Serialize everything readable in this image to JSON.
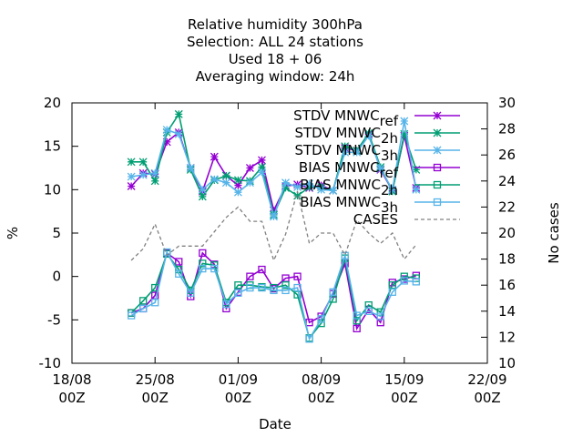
{
  "chart_data": {
    "type": "line",
    "title_lines": [
      "Relative humidity 300hPa",
      "Selection: ALL      24 stations",
      "Used  18 + 06",
      "Averaging window: 24h"
    ],
    "xlabel": "Date",
    "ylabel": "%",
    "y2label": "No cases",
    "x_ticks": [
      {
        "x": "2025-08-18",
        "line1": "18/08",
        "line2": "00Z"
      },
      {
        "x": "2025-08-25",
        "line1": "25/08",
        "line2": "00Z"
      },
      {
        "x": "2025-09-01",
        "line1": "01/09",
        "line2": "00Z"
      },
      {
        "x": "2025-09-08",
        "line1": "08/09",
        "line2": "00Z"
      },
      {
        "x": "2025-09-15",
        "line1": "15/09",
        "line2": "00Z"
      },
      {
        "x": "2025-09-22",
        "line1": "22/09",
        "line2": "00Z"
      }
    ],
    "xlim": [
      "2025-08-18",
      "2025-09-22"
    ],
    "ylim": [
      -10,
      20
    ],
    "y_ticks": [
      -10,
      -5,
      0,
      5,
      10,
      15,
      20
    ],
    "y2lim": [
      10,
      30
    ],
    "y2_ticks": [
      10,
      12,
      14,
      16,
      18,
      20,
      22,
      24,
      26,
      28,
      30
    ],
    "x": [
      "2025-08-23 00:00",
      "2025-08-24 00:00",
      "2025-08-25 00:00",
      "2025-08-26 00:00",
      "2025-08-27 00:00",
      "2025-08-28 00:00",
      "2025-08-29 00:00",
      "2025-08-30 00:00",
      "2025-08-31 00:00",
      "2025-09-01 00:00",
      "2025-09-02 00:00",
      "2025-09-03 00:00",
      "2025-09-04 00:00",
      "2025-09-05 00:00",
      "2025-09-06 00:00",
      "2025-09-07 00:00",
      "2025-09-08 00:00",
      "2025-09-09 00:00",
      "2025-09-10 00:00",
      "2025-09-11 00:00",
      "2025-09-12 00:00",
      "2025-09-13 00:00",
      "2025-09-14 00:00",
      "2025-09-15 00:00",
      "2025-09-16 00:00"
    ],
    "legend_position": "top-right",
    "series": [
      {
        "name": "STDV MNWC_ref",
        "axis": "y1",
        "color": "#9400d3",
        "marker": "star",
        "values": [
          10.4,
          11.9,
          11.8,
          15.5,
          16.6,
          12.5,
          9.8,
          13.8,
          11.6,
          10.5,
          12.5,
          13.4,
          7.6,
          10.4,
          10.6,
          10.2,
          10.5,
          9.9,
          14.8,
          14.5,
          16.4,
          12.3,
          9.9,
          16.2,
          10.2
        ]
      },
      {
        "name": "STDV MNWC_2h",
        "axis": "y1",
        "color": "#009e73",
        "marker": "star",
        "values": [
          13.2,
          13.2,
          11.0,
          16.6,
          18.7,
          12.3,
          9.2,
          11.1,
          11.6,
          11.1,
          11.0,
          12.6,
          7.1,
          10.2,
          9.3,
          10.3,
          10.3,
          9.9,
          15.0,
          14.5,
          16.5,
          12.6,
          9.8,
          16.4,
          12.3
        ]
      },
      {
        "name": "STDV MNWC_3h",
        "axis": "y1",
        "color": "#56b4e9",
        "marker": "star",
        "values": [
          11.5,
          11.7,
          11.9,
          16.9,
          16.4,
          12.5,
          10.0,
          11.2,
          10.8,
          9.7,
          10.8,
          12.0,
          6.9,
          10.8,
          10.3,
          10.7,
          10.0,
          9.9,
          14.3,
          14.3,
          16.2,
          12.4,
          10.0,
          17.9,
          10.0
        ]
      },
      {
        "name": "BIAS MNWC_ref",
        "axis": "y1",
        "color": "#9400d3",
        "marker": "square",
        "values": [
          -4.2,
          -3.7,
          -2.2,
          2.7,
          1.7,
          -2.3,
          2.7,
          1.4,
          -3.7,
          -1.8,
          0.0,
          0.8,
          -1.4,
          -0.2,
          0.0,
          -5.3,
          -4.6,
          -2.0,
          1.5,
          -6.0,
          -3.8,
          -5.3,
          -0.7,
          -0.3,
          0.1
        ]
      },
      {
        "name": "BIAS MNWC_2h",
        "axis": "y1",
        "color": "#009e73",
        "marker": "square",
        "values": [
          -4.2,
          -2.8,
          -1.3,
          2.6,
          0.8,
          -1.6,
          1.5,
          1.3,
          -3.0,
          -1.0,
          -1.0,
          -1.2,
          -1.3,
          -1.0,
          -2.1,
          -7.1,
          -5.4,
          -2.6,
          2.1,
          -5.1,
          -3.3,
          -4.1,
          -1.0,
          0.0,
          -0.2
        ]
      },
      {
        "name": "BIAS MNWC_3h",
        "axis": "y1",
        "color": "#56b4e9",
        "marker": "square",
        "values": [
          -4.5,
          -3.7,
          -3.0,
          2.8,
          0.3,
          -1.9,
          0.9,
          0.9,
          -3.2,
          -1.9,
          -1.3,
          -1.3,
          -1.6,
          -1.6,
          -1.3,
          -7.2,
          -4.9,
          -1.8,
          2.4,
          -4.5,
          -4.0,
          -4.6,
          -1.8,
          -0.5,
          -0.6
        ]
      },
      {
        "name": "CASES",
        "axis": "y2",
        "color": "#808080",
        "marker": "none",
        "dash": true,
        "values": [
          17.9,
          18.8,
          20.7,
          18.3,
          19.0,
          19.0,
          19.0,
          20.1,
          21.2,
          22.0,
          20.9,
          20.9,
          17.9,
          19.9,
          23.2,
          19.2,
          20.0,
          20.0,
          18.3,
          21.0,
          20.0,
          19.2,
          20.0,
          18.0,
          19.1
        ]
      }
    ],
    "legend": [
      {
        "name": "STDV MNWC",
        "sub": "ref"
      },
      {
        "name": "STDV MNWC",
        "sub": "2h"
      },
      {
        "name": "STDV MNWC",
        "sub": "3h"
      },
      {
        "name": "BIAS MNWC",
        "sub": "ref"
      },
      {
        "name": "BIAS MNWC",
        "sub": "2h"
      },
      {
        "name": "BIAS MNWC",
        "sub": "3h"
      },
      {
        "name": "CASES",
        "sub": ""
      }
    ]
  }
}
